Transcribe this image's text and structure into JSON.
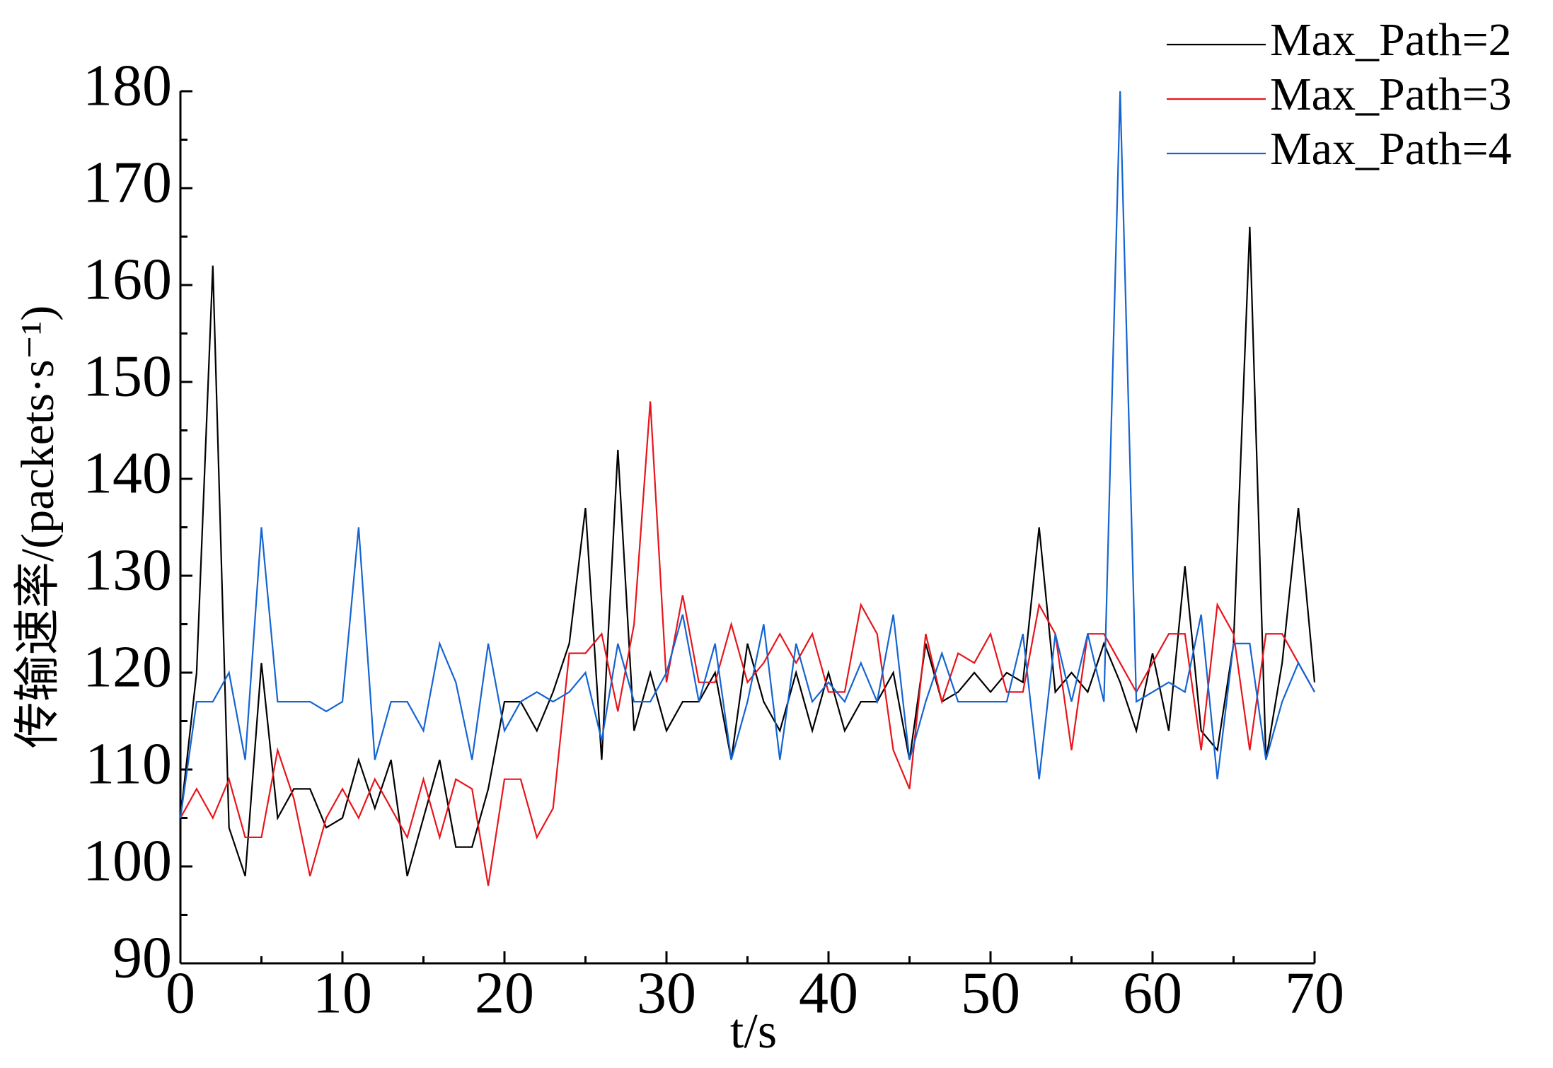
{
  "chart_data": {
    "type": "line",
    "y_label": "传输速率/(packets·s⁻¹)",
    "x_label": "t/s",
    "x": [
      0,
      1,
      2,
      3,
      4,
      5,
      6,
      7,
      8,
      9,
      10,
      11,
      12,
      13,
      14,
      15,
      16,
      17,
      18,
      19,
      20,
      21,
      22,
      23,
      24,
      25,
      26,
      27,
      28,
      29,
      30,
      31,
      32,
      33,
      34,
      35,
      36,
      37,
      38,
      39,
      40,
      41,
      42,
      43,
      44,
      45,
      46,
      47,
      48,
      49,
      50,
      51,
      52,
      53,
      54,
      55,
      56,
      57,
      58,
      59,
      60,
      61,
      62,
      63,
      64,
      65,
      66,
      67,
      68,
      69,
      70
    ],
    "series": [
      {
        "name": "Max_Path=2",
        "color": "#000000",
        "values": [
          105,
          120,
          162,
          104,
          99,
          121,
          105,
          108,
          108,
          104,
          105,
          111,
          106,
          111,
          99,
          105,
          111,
          102,
          102,
          108,
          117,
          117,
          114,
          118,
          123,
          137,
          111,
          143,
          114,
          120,
          114,
          117,
          117,
          120,
          111,
          123,
          117,
          114,
          120,
          114,
          120,
          114,
          117,
          117,
          120,
          111,
          123,
          117,
          118,
          120,
          118,
          120,
          119,
          135,
          118,
          120,
          118,
          123,
          119,
          114,
          122,
          114,
          131,
          114,
          112,
          123,
          166,
          111,
          121,
          137,
          119
        ]
      },
      {
        "name": "Max_Path=3",
        "color": "#e8141c",
        "values": [
          105,
          108,
          105,
          109,
          103,
          103,
          112,
          107,
          99,
          105,
          108,
          105,
          109,
          106,
          103,
          109,
          103,
          109,
          108,
          98,
          109,
          109,
          103,
          106,
          122,
          122,
          124,
          116,
          125,
          148,
          119,
          128,
          119,
          119,
          125,
          119,
          121,
          124,
          121,
          124,
          118,
          118,
          127,
          124,
          112,
          108,
          124,
          117,
          122,
          121,
          124,
          118,
          118,
          127,
          124,
          112,
          124,
          124,
          121,
          118,
          121,
          124,
          124,
          112,
          127,
          124,
          112,
          124,
          124,
          121,
          118
        ]
      },
      {
        "name": "Max_Path=4",
        "color": "#1464d2",
        "values": [
          105,
          117,
          117,
          120,
          111,
          135,
          117,
          117,
          117,
          116,
          117,
          135,
          111,
          117,
          117,
          114,
          123,
          119,
          111,
          123,
          114,
          117,
          118,
          117,
          118,
          120,
          113,
          123,
          117,
          117,
          120,
          126,
          117,
          123,
          111,
          117,
          125,
          111,
          123,
          117,
          119,
          117,
          121,
          117,
          126,
          111,
          117,
          122,
          117,
          117,
          117,
          117,
          124,
          109,
          124,
          117,
          124,
          117,
          180,
          117,
          118,
          119,
          118,
          126,
          109,
          123,
          123,
          111,
          117,
          121,
          118
        ]
      }
    ],
    "xlim": [
      0,
      70
    ],
    "xticks": [
      0,
      10,
      20,
      30,
      40,
      50,
      60,
      70
    ],
    "ylim": [
      90,
      180
    ],
    "yticks": [
      90,
      100,
      110,
      120,
      130,
      140,
      150,
      160,
      170,
      180
    ],
    "grid": false,
    "legend": "top-right"
  }
}
